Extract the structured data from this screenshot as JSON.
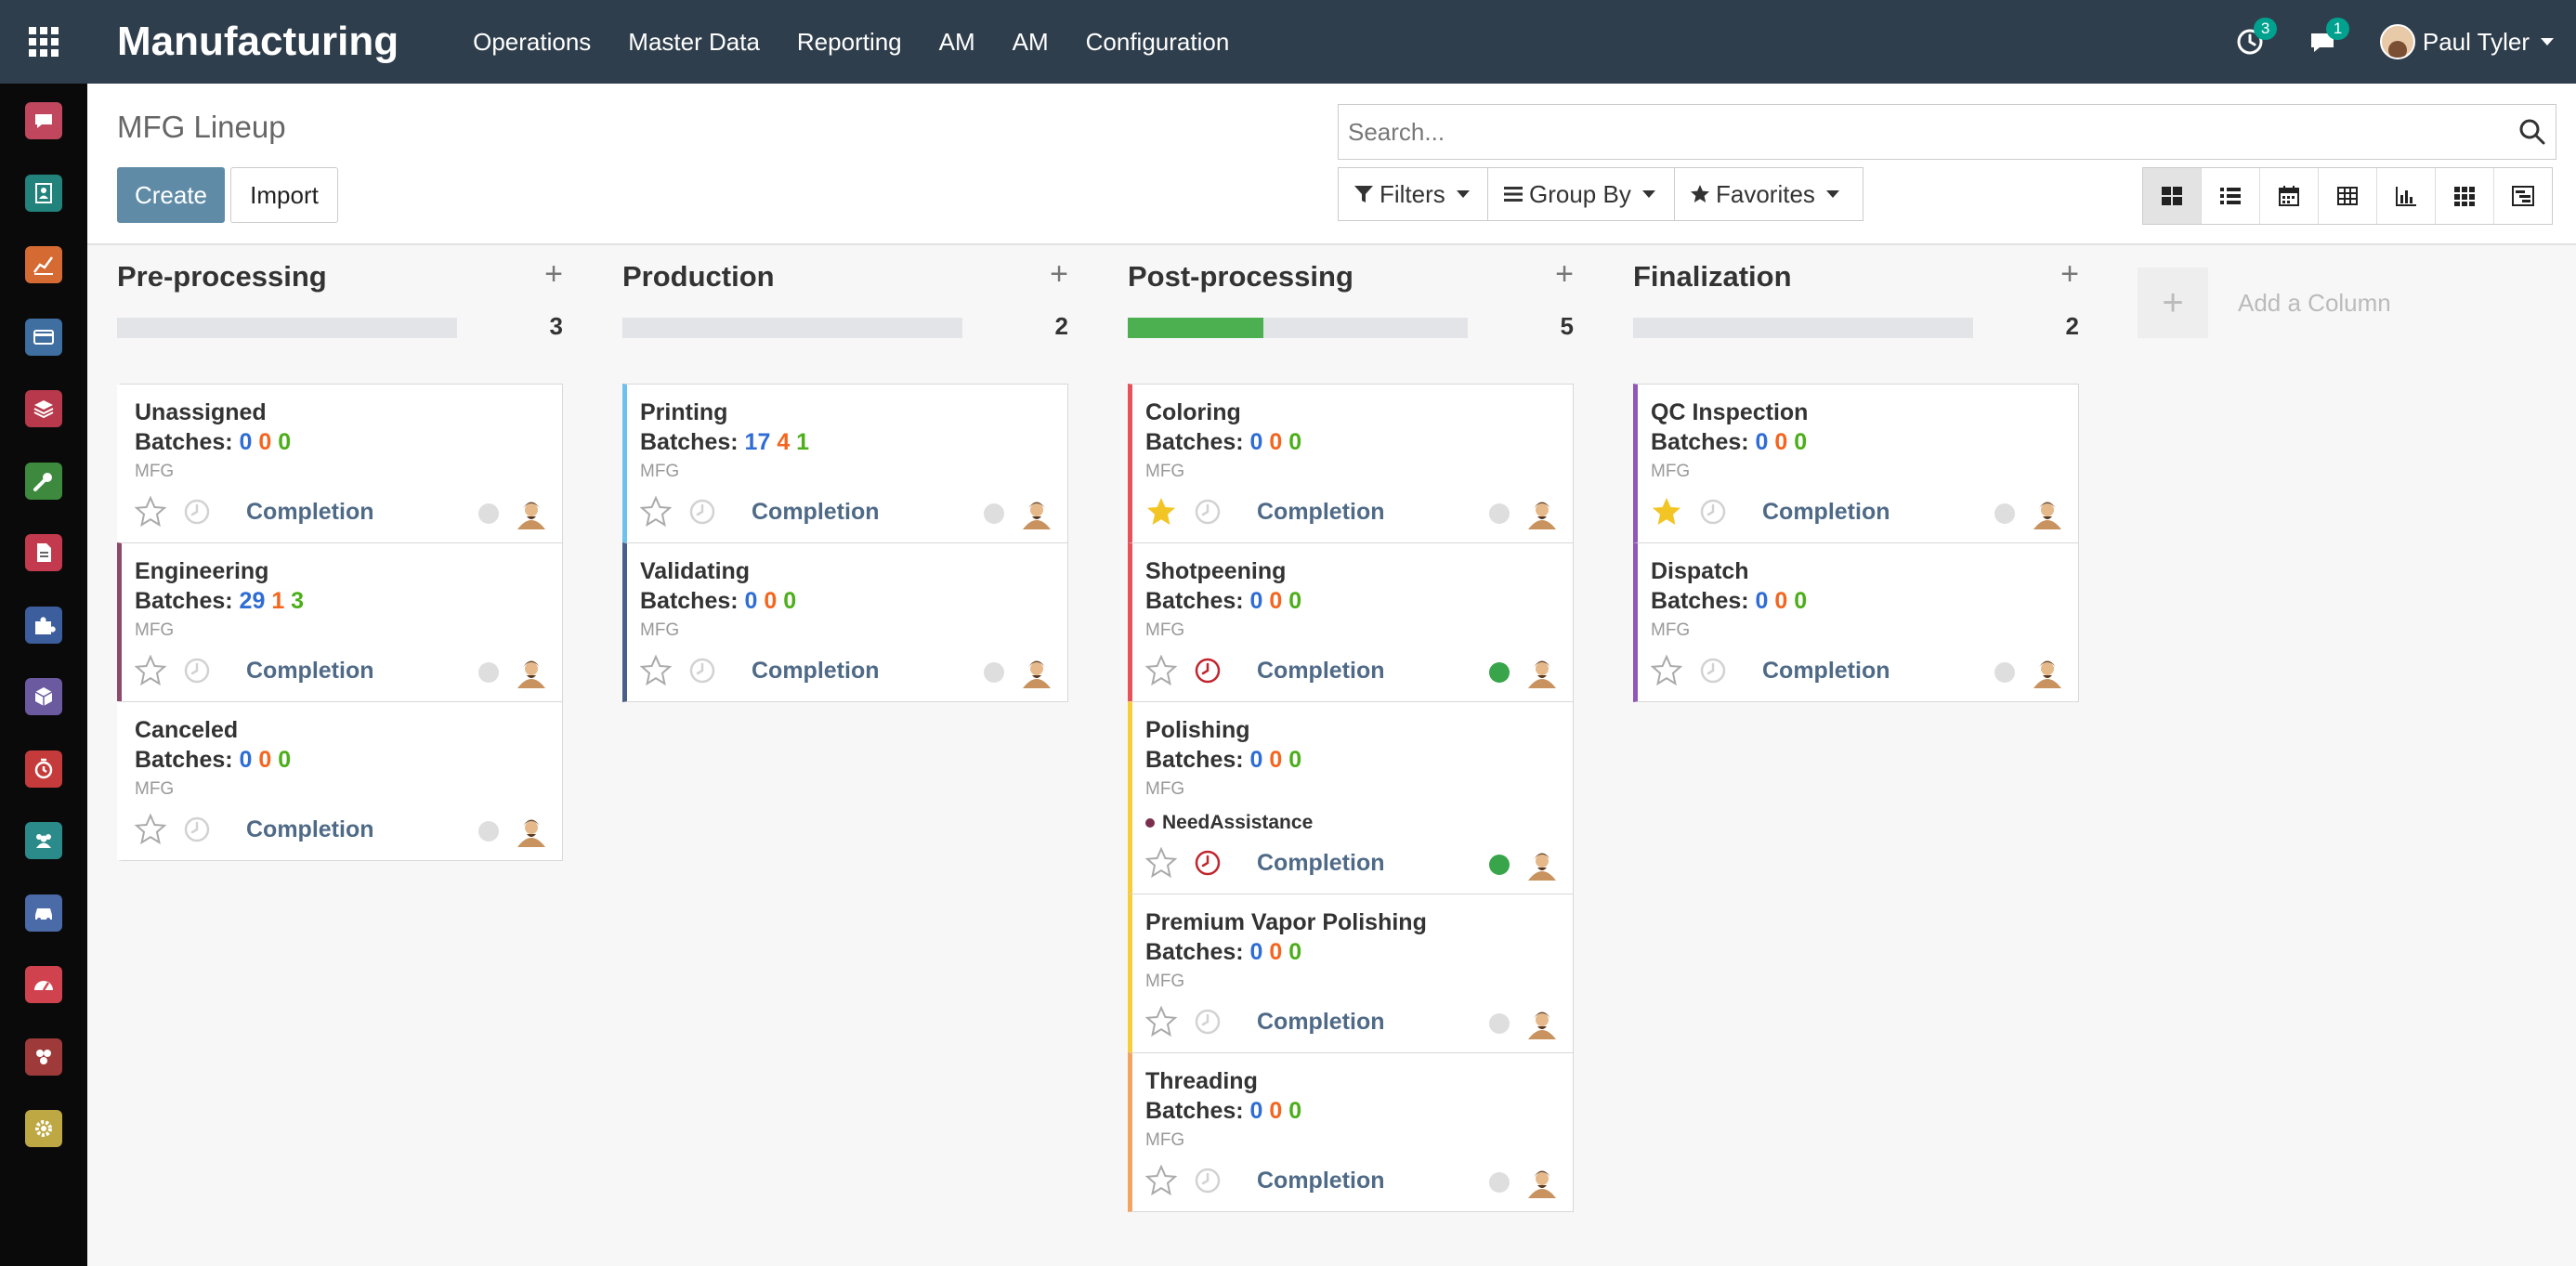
{
  "navbar": {
    "app_title": "Manufacturing",
    "menu": [
      "Operations",
      "Master Data",
      "Reporting",
      "AM",
      "AM",
      "Configuration"
    ],
    "activity_badge": "3",
    "messages_badge": "1",
    "user_name": "Paul Tyler"
  },
  "sidebar": {
    "apps": [
      {
        "icon": "discuss-icon",
        "color": "#c0475d"
      },
      {
        "icon": "contacts-icon",
        "color": "#21837c"
      },
      {
        "icon": "crm-icon",
        "color": "#d66a33"
      },
      {
        "icon": "invoicing-icon",
        "color": "#3f6ea0"
      },
      {
        "icon": "inventory-icon",
        "color": "#b8384c"
      },
      {
        "icon": "tools-icon",
        "color": "#3d8a3f"
      },
      {
        "icon": "documents-icon",
        "color": "#c3394d"
      },
      {
        "icon": "apps-puzzle-icon",
        "color": "#3c5e9c"
      },
      {
        "icon": "products-icon",
        "color": "#6c5aa0"
      },
      {
        "icon": "timer-icon",
        "color": "#c53b3b"
      },
      {
        "icon": "employees-icon",
        "color": "#2a8b8a"
      },
      {
        "icon": "fleet-icon",
        "color": "#4a6aa8"
      },
      {
        "icon": "dashboard-icon",
        "color": "#d0434e"
      },
      {
        "icon": "community-icon",
        "color": "#9e3a3a"
      },
      {
        "icon": "settings-icon",
        "color": "#bda843"
      }
    ]
  },
  "control_panel": {
    "breadcrumb": "MFG Lineup",
    "create_label": "Create",
    "import_label": "Import",
    "search_placeholder": "Search...",
    "filters_label": "Filters",
    "groupby_label": "Group By",
    "favorites_label": "Favorites",
    "views": [
      "kanban",
      "list",
      "calendar",
      "pivot",
      "graph",
      "grid",
      "gantt"
    ],
    "active_view": "kanban"
  },
  "kanban": {
    "add_column_label": "Add a Column",
    "columns": [
      {
        "title": "Pre-processing",
        "count": "3",
        "progress": 0,
        "cards": [
          {
            "name": "Unassigned",
            "batches_label": "Batches:",
            "blue": "0",
            "orange": "0",
            "green": "0",
            "tag": "MFG",
            "label": "",
            "completion": "Completion",
            "starred": false,
            "overdue": false,
            "status": "grey",
            "color": ""
          },
          {
            "name": "Engineering",
            "batches_label": "Batches:",
            "blue": "29",
            "orange": "1",
            "green": "3",
            "tag": "MFG",
            "label": "",
            "completion": "Completion",
            "starred": false,
            "overdue": false,
            "status": "grey",
            "color": "#8e4a6e"
          },
          {
            "name": "Canceled",
            "batches_label": "Batches:",
            "blue": "0",
            "orange": "0",
            "green": "0",
            "tag": "MFG",
            "label": "",
            "completion": "Completion",
            "starred": false,
            "overdue": false,
            "status": "grey",
            "color": ""
          }
        ]
      },
      {
        "title": "Production",
        "count": "2",
        "progress": 0,
        "cards": [
          {
            "name": "Printing",
            "batches_label": "Batches:",
            "blue": "17",
            "orange": "4",
            "green": "1",
            "tag": "MFG",
            "label": "",
            "completion": "Completion",
            "starred": false,
            "overdue": false,
            "status": "grey",
            "color": "#6cc1ed"
          },
          {
            "name": "Validating",
            "batches_label": "Batches:",
            "blue": "0",
            "orange": "0",
            "green": "0",
            "tag": "MFG",
            "label": "",
            "completion": "Completion",
            "starred": false,
            "overdue": false,
            "status": "grey",
            "color": "#4a5e8c"
          }
        ]
      },
      {
        "title": "Post-processing",
        "count": "5",
        "progress": 0.4,
        "cards": [
          {
            "name": "Coloring",
            "batches_label": "Batches:",
            "blue": "0",
            "orange": "0",
            "green": "0",
            "tag": "MFG",
            "label": "",
            "completion": "Completion",
            "starred": true,
            "overdue": false,
            "status": "grey",
            "color": "#e6515a"
          },
          {
            "name": "Shotpeening",
            "batches_label": "Batches:",
            "blue": "0",
            "orange": "0",
            "green": "0",
            "tag": "MFG",
            "label": "",
            "completion": "Completion",
            "starred": false,
            "overdue": true,
            "status": "green",
            "color": "#e6515a"
          },
          {
            "name": "Polishing",
            "batches_label": "Batches:",
            "blue": "0",
            "orange": "0",
            "green": "0",
            "tag": "MFG",
            "label": "NeedAssistance",
            "completion": "Completion",
            "starred": false,
            "overdue": true,
            "status": "green",
            "color": "#f7cd3c"
          },
          {
            "name": "Premium Vapor Polishing",
            "batches_label": "Batches:",
            "blue": "0",
            "orange": "0",
            "green": "0",
            "tag": "MFG",
            "label": "",
            "completion": "Completion",
            "starred": false,
            "overdue": false,
            "status": "grey",
            "color": "#f7cd3c"
          },
          {
            "name": "Threading",
            "batches_label": "Batches:",
            "blue": "0",
            "orange": "0",
            "green": "0",
            "tag": "MFG",
            "label": "",
            "completion": "Completion",
            "starred": false,
            "overdue": false,
            "status": "grey",
            "color": "#f4a460"
          }
        ]
      },
      {
        "title": "Finalization",
        "count": "2",
        "progress": 0,
        "cards": [
          {
            "name": "QC Inspection",
            "batches_label": "Batches:",
            "blue": "0",
            "orange": "0",
            "green": "0",
            "tag": "MFG",
            "label": "",
            "completion": "Completion",
            "starred": true,
            "overdue": false,
            "status": "grey",
            "color": "#8f58b8"
          },
          {
            "name": "Dispatch",
            "batches_label": "Batches:",
            "blue": "0",
            "orange": "0",
            "green": "0",
            "tag": "MFG",
            "label": "",
            "completion": "Completion",
            "starred": false,
            "overdue": false,
            "status": "grey",
            "color": "#8f58b8"
          }
        ]
      }
    ]
  }
}
